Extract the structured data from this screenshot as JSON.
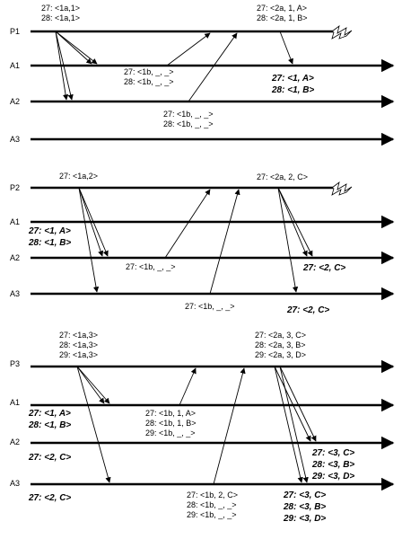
{
  "panels": [
    {
      "processes": [
        "P1",
        "A1",
        "A2",
        "A3"
      ],
      "messages_text": [
        {
          "lines": [
            "27: <1a,1>",
            "28: <1a,1>"
          ],
          "bold": false
        },
        {
          "lines": [
            "27: <2a, 1, A>",
            "28: <2a, 1, B>"
          ],
          "bold": false
        },
        {
          "lines": [
            "27: <1b, _, _>",
            "28: <1b, _, _>"
          ],
          "bold": false
        },
        {
          "lines": [
            "27: <1, A>",
            "28: <1, B>"
          ],
          "bold": true
        },
        {
          "lines": [
            "27: <1b, _, _>",
            "28: <1b, _, _>"
          ],
          "bold": false
        }
      ]
    },
    {
      "processes": [
        "P2",
        "A1",
        "A2",
        "A3"
      ],
      "messages_text": [
        {
          "lines": [
            "27: <1a,2>"
          ],
          "bold": false
        },
        {
          "lines": [
            "27: <2a, 2, C>"
          ],
          "bold": false
        },
        {
          "lines": [
            "27: <1, A>",
            "28: <1, B>"
          ],
          "bold": true
        },
        {
          "lines": [
            "27: <1b, _, _>"
          ],
          "bold": false
        },
        {
          "lines": [
            "27: <2, C>"
          ],
          "bold": true
        },
        {
          "lines": [
            "27: <1b, _, _>"
          ],
          "bold": false
        },
        {
          "lines": [
            "27: <2, C>"
          ],
          "bold": true
        }
      ]
    },
    {
      "processes": [
        "P3",
        "A1",
        "A2",
        "A3"
      ],
      "messages_text": [
        {
          "lines": [
            "27: <1a,3>",
            "28: <1a,3>",
            "29: <1a,3>"
          ],
          "bold": false
        },
        {
          "lines": [
            "27: <2a, 3, C>",
            "28: <2a, 3, B>",
            "29: <2a, 3, D>"
          ],
          "bold": false
        },
        {
          "lines": [
            "27: <1, A>",
            "28: <1, B>"
          ],
          "bold": true
        },
        {
          "lines": [
            "27: <1b, 1, A>",
            "28: <1b, 1, B>",
            "29: <1b, _, _>"
          ],
          "bold": false
        },
        {
          "lines": [
            "27: <2, C>"
          ],
          "bold": true
        },
        {
          "lines": [
            "27: <3, C>",
            "28: <3, B>",
            "29: <3, D>"
          ],
          "bold": true
        },
        {
          "lines": [
            "27: <2, C>"
          ],
          "bold": true
        },
        {
          "lines": [
            "27: <1b, 2, C>",
            "28: <1b, _, _>",
            "29: <1b, _, _>"
          ],
          "bold": false
        },
        {
          "lines": [
            "27: <3, C>",
            "28: <3, B>",
            "29: <3, D>"
          ],
          "bold": true
        }
      ]
    }
  ]
}
